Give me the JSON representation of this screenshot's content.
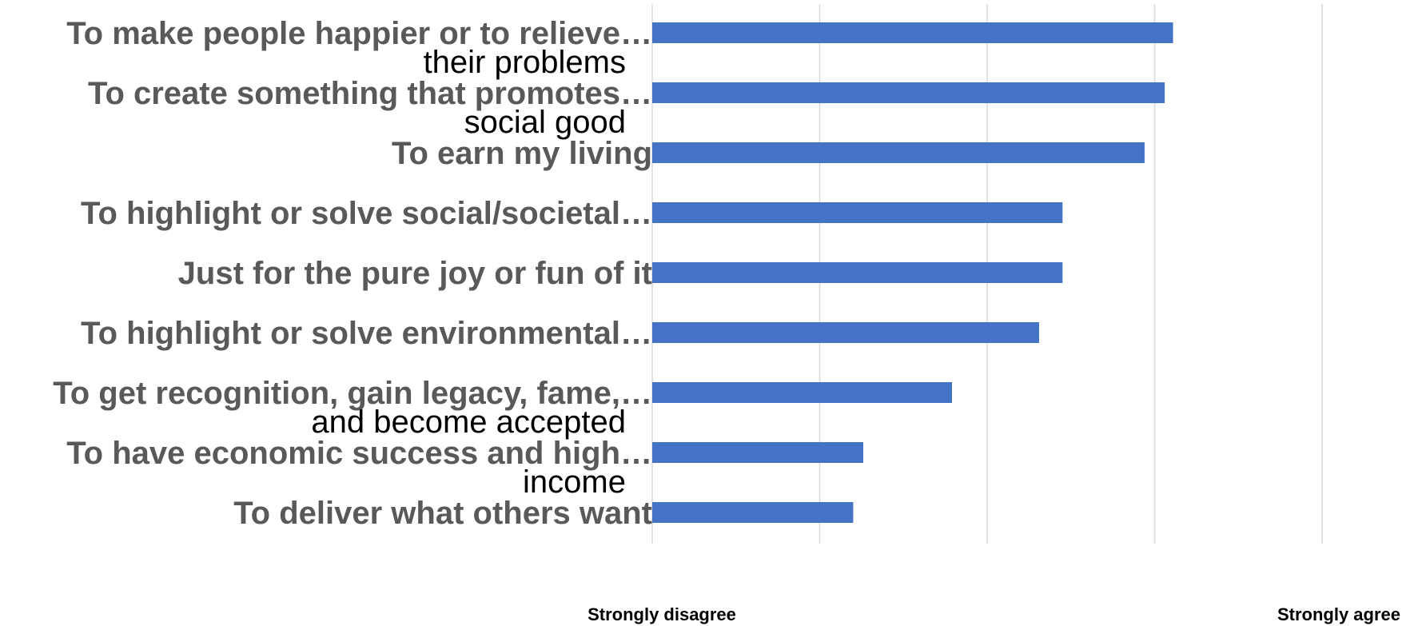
{
  "chart_data": {
    "type": "bar",
    "orientation": "horizontal",
    "categories": [
      {
        "label": "To make people happier or to relieve…",
        "continuation": "their problems"
      },
      {
        "label": "To create something that promotes…",
        "continuation": "social good"
      },
      {
        "label": "To earn my living",
        "continuation": ""
      },
      {
        "label": "To highlight or solve social/societal…",
        "continuation": ""
      },
      {
        "label": "Just for the pure joy or fun of it",
        "continuation": ""
      },
      {
        "label": "To highlight or solve environmental…",
        "continuation": ""
      },
      {
        "label": "To get recognition, gain legacy, fame,…",
        "continuation": "and become accepted"
      },
      {
        "label": "To have economic success and high…",
        "continuation": "income"
      },
      {
        "label": "To deliver what others want",
        "continuation": ""
      }
    ],
    "values": [
      4.11,
      4.06,
      3.94,
      3.45,
      3.45,
      3.31,
      2.79,
      2.26,
      2.2
    ],
    "xlim": [
      1,
      5
    ],
    "x_gridlines": [
      1,
      2,
      3,
      4,
      5
    ],
    "x_min_label": "Strongly disagree",
    "x_max_label": "Strongly agree",
    "grid": true,
    "legend": "none",
    "bar_color": "#4472C4",
    "gridline_color": "#D9D9D9",
    "label_color": "#595959"
  }
}
